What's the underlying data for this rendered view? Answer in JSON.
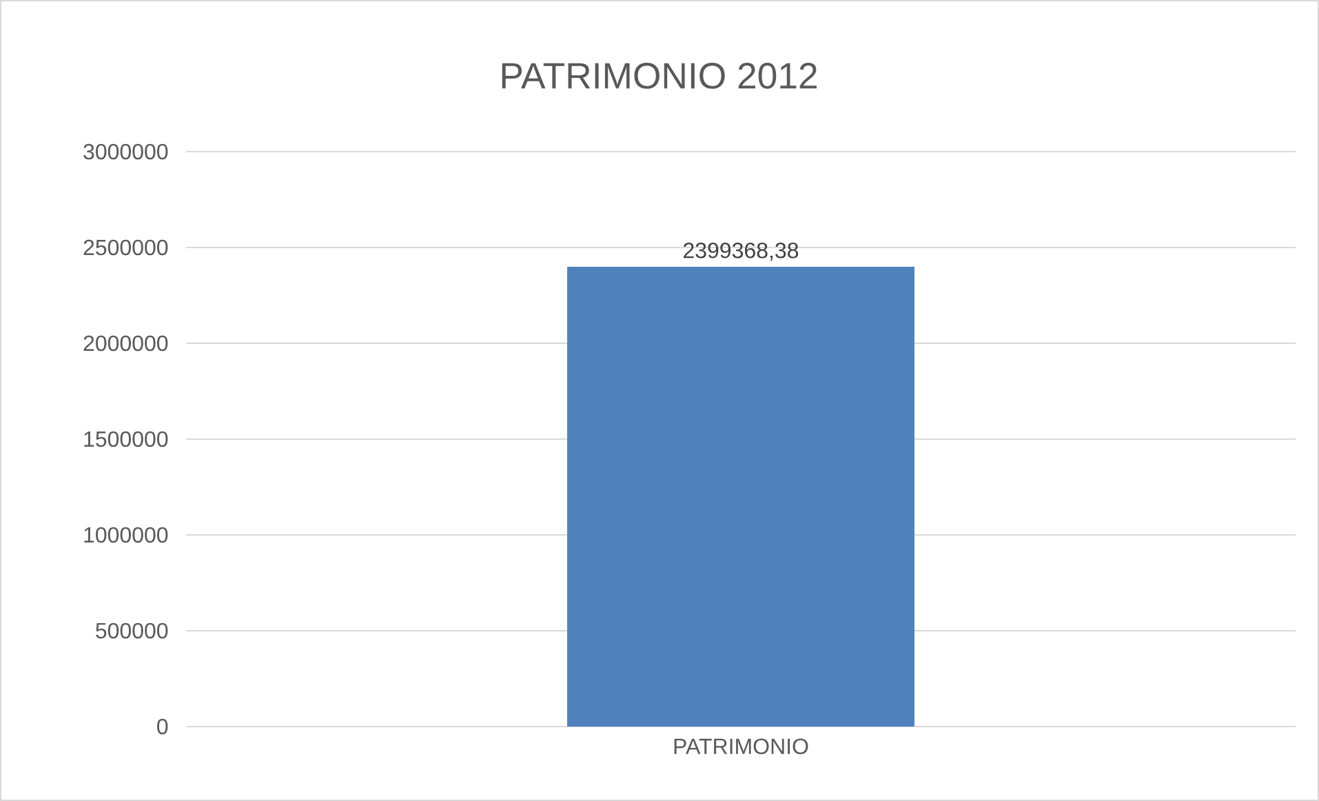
{
  "chart_data": {
    "type": "bar",
    "title": "PATRIMONIO 2012",
    "categories": [
      "PATRIMONIO"
    ],
    "values": [
      2399368.38
    ],
    "value_labels": [
      "2399368,38"
    ],
    "color": "#4f81bd",
    "ylim": [
      0,
      3000000
    ],
    "yticks": [
      0,
      500000,
      1000000,
      1500000,
      2000000,
      2500000,
      3000000
    ],
    "grid": "y"
  }
}
